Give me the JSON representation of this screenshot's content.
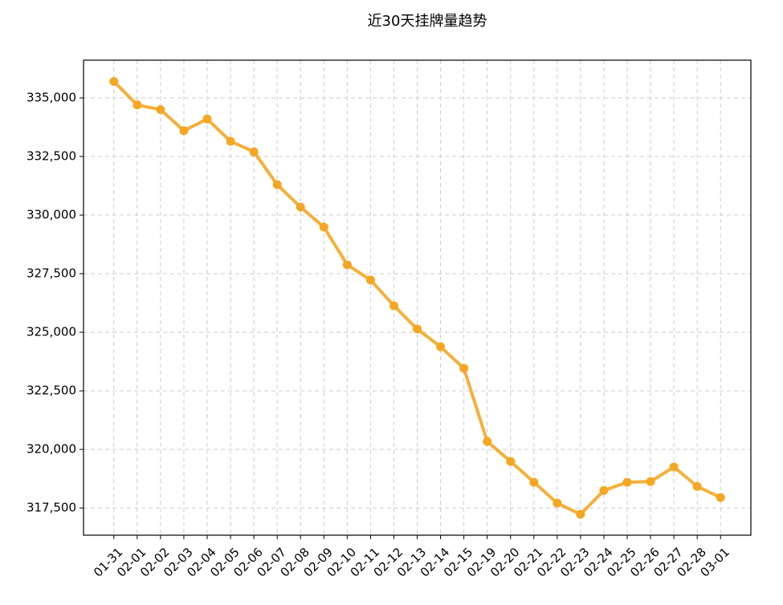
{
  "chart_data": {
    "type": "line",
    "title": "近30天挂牌量趋势",
    "categories": [
      "01-31",
      "02-01",
      "02-02",
      "02-03",
      "02-04",
      "02-05",
      "02-06",
      "02-07",
      "02-08",
      "02-09",
      "02-10",
      "02-11",
      "02-12",
      "02-13",
      "02-14",
      "02-15",
      "02-19",
      "02-20",
      "02-21",
      "02-22",
      "02-23",
      "02-24",
      "02-25",
      "02-26",
      "02-27",
      "02-28",
      "03-01"
    ],
    "series": [
      {
        "name": "挂牌量",
        "color": "#f5a623",
        "values": [
          335700,
          334700,
          334500,
          333600,
          334100,
          333150,
          332700,
          331300,
          330340,
          329490,
          327880,
          327230,
          326130,
          325140,
          324380,
          323460,
          320340,
          319490,
          318600,
          317710,
          317230,
          318250,
          318600,
          318630,
          319250,
          318420,
          317950
        ]
      }
    ],
    "ylim": [
      316340,
      336610
    ],
    "yticks": [
      {
        "value": 317500,
        "label": "317,500"
      },
      {
        "value": 320000,
        "label": "320,000"
      },
      {
        "value": 322500,
        "label": "322,500"
      },
      {
        "value": 325000,
        "label": "325,000"
      },
      {
        "value": 327500,
        "label": "327,500"
      },
      {
        "value": 330000,
        "label": "330,000"
      },
      {
        "value": 332500,
        "label": "332,500"
      },
      {
        "value": 335000,
        "label": "335,000"
      }
    ],
    "grid": true
  }
}
